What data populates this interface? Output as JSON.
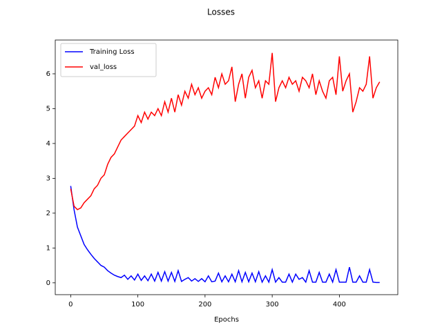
{
  "chart_data": {
    "type": "line",
    "title": "Losses",
    "x_label": "Epochs",
    "x": [
      0,
      5,
      10,
      15,
      20,
      25,
      30,
      35,
      40,
      45,
      50,
      55,
      60,
      65,
      70,
      75,
      80,
      85,
      90,
      95,
      100,
      105,
      110,
      115,
      120,
      125,
      130,
      135,
      140,
      145,
      150,
      155,
      160,
      165,
      170,
      175,
      180,
      185,
      190,
      195,
      200,
      205,
      210,
      215,
      220,
      225,
      230,
      235,
      240,
      245,
      250,
      255,
      260,
      265,
      270,
      275,
      280,
      285,
      290,
      295,
      300,
      305,
      310,
      315,
      320,
      325,
      330,
      335,
      340,
      345,
      350,
      355,
      360,
      365,
      370,
      375,
      380,
      385,
      390,
      395,
      400,
      405,
      410,
      415,
      420,
      425,
      430,
      435,
      440,
      445,
      450,
      455,
      460
    ],
    "series": [
      {
        "name": "Training Loss",
        "color": "#0000ff",
        "values": [
          2.78,
          2.1,
          1.6,
          1.35,
          1.1,
          0.95,
          0.82,
          0.7,
          0.6,
          0.5,
          0.45,
          0.35,
          0.28,
          0.22,
          0.18,
          0.15,
          0.22,
          0.1,
          0.2,
          0.08,
          0.25,
          0.07,
          0.2,
          0.06,
          0.25,
          0.05,
          0.3,
          0.05,
          0.32,
          0.05,
          0.3,
          0.04,
          0.35,
          0.04,
          0.1,
          0.15,
          0.05,
          0.12,
          0.04,
          0.12,
          0.03,
          0.2,
          0.03,
          0.05,
          0.28,
          0.03,
          0.2,
          0.03,
          0.25,
          0.03,
          0.35,
          0.03,
          0.3,
          0.03,
          0.28,
          0.03,
          0.32,
          0.02,
          0.2,
          0.02,
          0.38,
          0.02,
          0.15,
          0.02,
          0.02,
          0.25,
          0.02,
          0.25,
          0.1,
          0.15,
          0.02,
          0.35,
          0.02,
          0.02,
          0.3,
          0.02,
          0.02,
          0.25,
          0.02,
          0.38,
          0.02,
          0.02,
          0.02,
          0.45,
          0.02,
          0.02,
          0.2,
          0.02,
          0.02,
          0.38,
          0.02,
          0.01,
          0.01
        ]
      },
      {
        "name": "val_loss",
        "color": "#ff0000",
        "values": [
          2.7,
          2.2,
          2.1,
          2.15,
          2.3,
          2.4,
          2.5,
          2.7,
          2.8,
          3.0,
          3.1,
          3.4,
          3.6,
          3.7,
          3.9,
          4.1,
          4.2,
          4.3,
          4.4,
          4.5,
          4.8,
          4.6,
          4.9,
          4.7,
          4.9,
          4.8,
          5.0,
          4.8,
          5.2,
          4.9,
          5.3,
          4.9,
          5.4,
          5.1,
          5.5,
          5.3,
          5.7,
          5.4,
          5.6,
          5.3,
          5.5,
          5.6,
          5.4,
          5.9,
          5.6,
          6.0,
          5.7,
          5.8,
          6.2,
          5.2,
          5.7,
          6.0,
          5.3,
          5.9,
          6.1,
          5.6,
          5.8,
          5.3,
          5.8,
          5.7,
          6.6,
          5.2,
          5.6,
          5.8,
          5.6,
          5.9,
          5.7,
          5.8,
          5.5,
          5.9,
          5.8,
          5.6,
          6.0,
          5.4,
          5.8,
          5.5,
          5.3,
          5.8,
          5.9,
          5.4,
          6.5,
          5.5,
          5.8,
          6.0,
          4.9,
          5.2,
          5.6,
          5.5,
          5.7,
          6.5,
          5.3,
          5.6,
          5.77
        ]
      }
    ],
    "xlim": [
      -23,
      487
    ],
    "ylim": [
      -0.34,
      6.97
    ],
    "xticks": [
      0,
      100,
      200,
      300,
      400
    ],
    "yticks": [
      0,
      1,
      2,
      3,
      4,
      5,
      6
    ],
    "legend": "upper left"
  }
}
